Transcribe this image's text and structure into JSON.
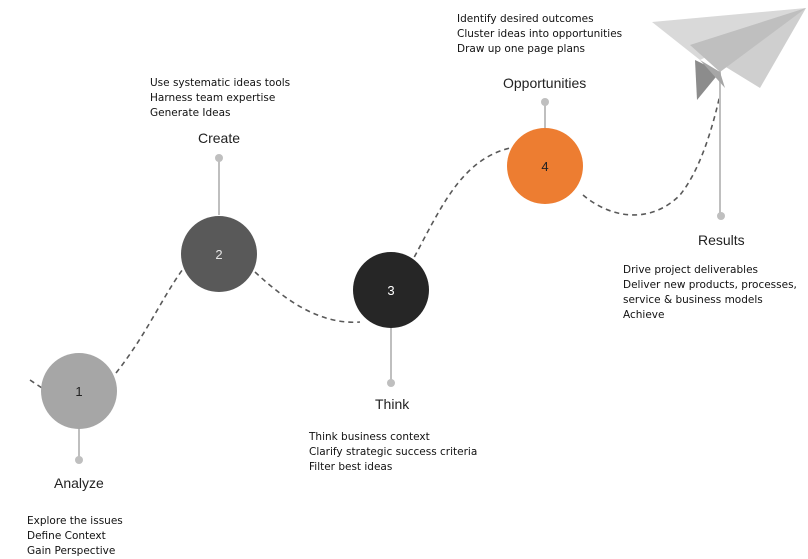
{
  "colors": {
    "step1": "#a6a6a6",
    "step2": "#595959",
    "step3": "#262626",
    "step4": "#ed7d31",
    "connector": "#bfbfbf",
    "path": "#595959"
  },
  "steps": [
    {
      "number": "1",
      "title": "Analyze",
      "bullets": [
        "Explore the issues",
        "Define Context",
        "Gain Perspective"
      ]
    },
    {
      "number": "2",
      "title": "Create",
      "bullets": [
        "Use systematic ideas tools",
        "Harness team expertise",
        "Generate Ideas"
      ]
    },
    {
      "number": "3",
      "title": "Think",
      "bullets": [
        "Think business context",
        "Clarify strategic success criteria",
        "Filter best ideas"
      ]
    },
    {
      "number": "4",
      "title": "Opportunities",
      "bullets": [
        "Identify desired outcomes",
        "Cluster ideas into opportunities",
        "Draw up one page plans"
      ]
    }
  ],
  "results": {
    "title": "Results",
    "bullets": [
      "Drive project deliverables",
      "Deliver new products, processes,",
      "service &  business models",
      "Achieve"
    ],
    "icon": "paper-plane-icon"
  }
}
